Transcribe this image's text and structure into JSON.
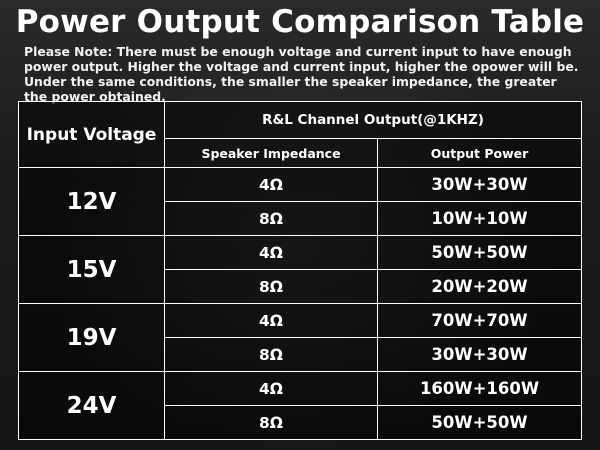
{
  "title": "Power Output Comparison Table",
  "note": "Please Note: There must be enough voltage and current input to have enough power output. Higher the voltage and current input, higher the opower will be. Under the same conditions, the smaller the speaker impedance, the greater the power obtained.",
  "table": {
    "input_header": "Input Voltage",
    "group_header": "R&L Channel Output(@1KHZ)",
    "impedance_header": "Speaker Impedance",
    "power_header": "Output Power",
    "groups": [
      {
        "voltage": "12V",
        "rows": [
          {
            "impedance": "4Ω",
            "power": "30W+30W"
          },
          {
            "impedance": "8Ω",
            "power": "10W+10W"
          }
        ]
      },
      {
        "voltage": "15V",
        "rows": [
          {
            "impedance": "4Ω",
            "power": "50W+50W"
          },
          {
            "impedance": "8Ω",
            "power": "20W+20W"
          }
        ]
      },
      {
        "voltage": "19V",
        "rows": [
          {
            "impedance": "4Ω",
            "power": "70W+70W"
          },
          {
            "impedance": "8Ω",
            "power": "30W+30W"
          }
        ]
      },
      {
        "voltage": "24V",
        "rows": [
          {
            "impedance": "4Ω",
            "power": "160W+160W"
          },
          {
            "impedance": "8Ω",
            "power": "50W+50W"
          }
        ]
      }
    ]
  }
}
